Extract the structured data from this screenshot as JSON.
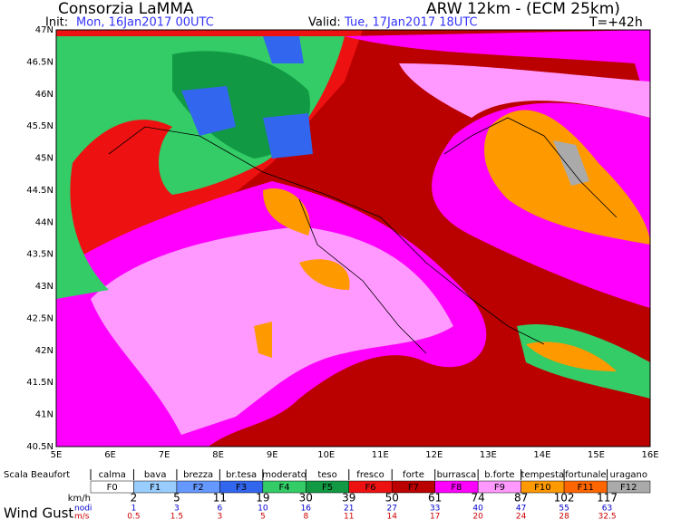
{
  "header": {
    "title": "Consorzia LaMMA",
    "init_label": "Init:",
    "init": "Mon, 16Jan2017 00UTC",
    "model": "ARW 12km - (ECM 25km)",
    "valid_label": "Valid:",
    "valid": "Tue, 17Jan2017 18UTC",
    "lead": "T=+42h"
  },
  "axes": {
    "lat": [
      "47N",
      "46.5N",
      "46N",
      "45.5N",
      "45N",
      "44.5N",
      "44N",
      "43.5N",
      "43N",
      "42.5N",
      "42N",
      "41.5N",
      "41N",
      "40.5N"
    ],
    "lon": [
      "5E",
      "6E",
      "7E",
      "8E",
      "9E",
      "10E",
      "11E",
      "12E",
      "13E",
      "14E",
      "15E",
      "16E"
    ]
  },
  "legend": {
    "scale_label": "Scala Beaufort",
    "footer": "Wind Gust",
    "units": {
      "kmh": "km/h",
      "knots": "nodi",
      "ms": "m/s"
    },
    "classes": [
      {
        "name": "calma",
        "code": "F0",
        "color": "#ffffff"
      },
      {
        "name": "bava",
        "code": "F1",
        "color": "#99ccff"
      },
      {
        "name": "brezza",
        "code": "F2",
        "color": "#6699ff"
      },
      {
        "name": "br.tesa",
        "code": "F3",
        "color": "#3366ee"
      },
      {
        "name": "moderato",
        "code": "F4",
        "color": "#33cc66"
      },
      {
        "name": "teso",
        "code": "F5",
        "color": "#119944"
      },
      {
        "name": "fresco",
        "code": "F6",
        "color": "#ee1111"
      },
      {
        "name": "forte",
        "code": "F7",
        "color": "#bb0000"
      },
      {
        "name": "burrasca",
        "code": "F8",
        "color": "#ff00ff"
      },
      {
        "name": "b.forte",
        "code": "F9",
        "color": "#ff99ff"
      },
      {
        "name": "tempesta",
        "code": "F10",
        "color": "#ff9900"
      },
      {
        "name": "fortunale",
        "code": "F11",
        "color": "#ff6600"
      },
      {
        "name": "uragano",
        "code": "F12",
        "color": "#aaaaaa"
      }
    ],
    "kmh": [
      2,
      5,
      11,
      19,
      30,
      39,
      50,
      61,
      74,
      87,
      102,
      117
    ],
    "knots": [
      1,
      3,
      6,
      10,
      16,
      21,
      27,
      33,
      40,
      47,
      55,
      63
    ],
    "ms": [
      0.5,
      1.5,
      3,
      5,
      8,
      11,
      14,
      17,
      20,
      24,
      28,
      32.5
    ]
  }
}
